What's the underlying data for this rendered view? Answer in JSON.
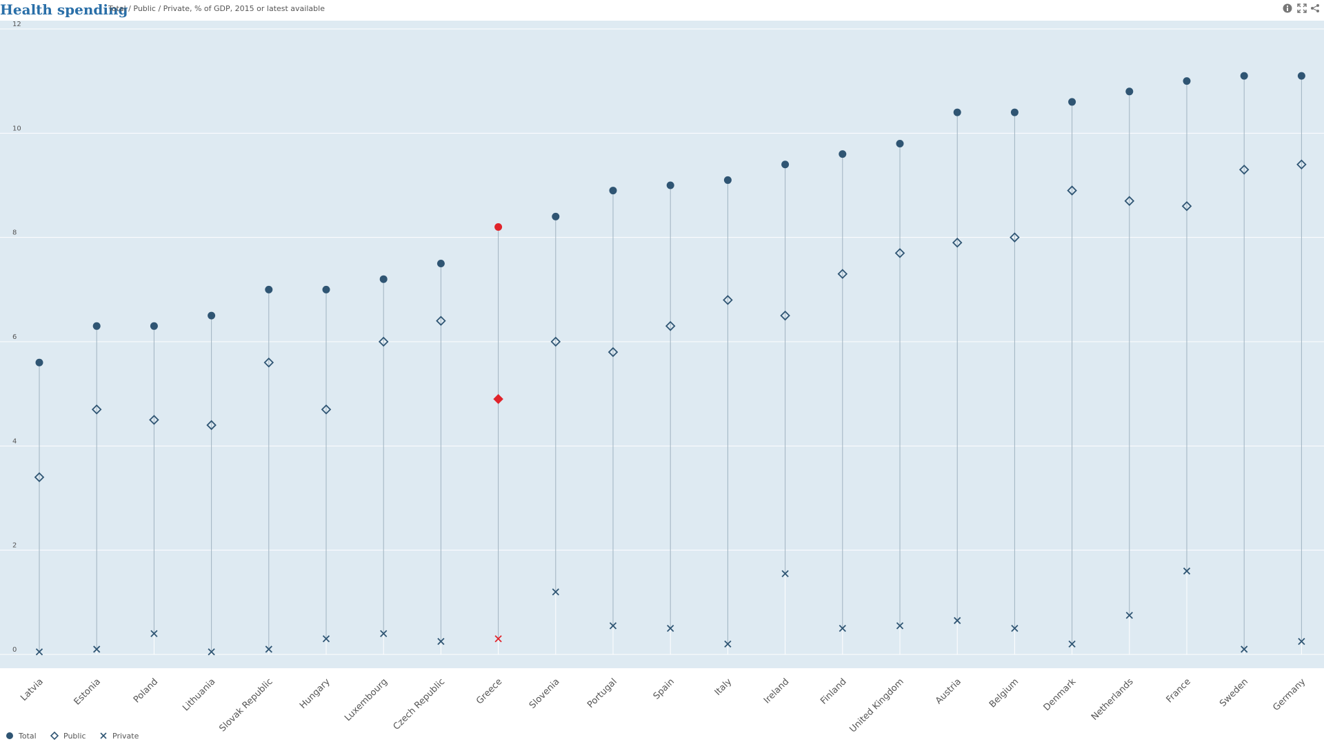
{
  "header": {
    "title": "Health spending",
    "subtitle": "Total / Public / Private, % of GDP, 2015 or latest available"
  },
  "icons": {
    "info": "info-icon",
    "fullscreen": "expand-icon",
    "share": "share-icon"
  },
  "colors": {
    "series": "#2f5573",
    "highlight": "#e0242b",
    "plot_bg": "#deeaf2"
  },
  "chart_data": {
    "type": "scatter",
    "subtype": "dot-range",
    "title": "Health spending",
    "subtitle": "Total / Public / Private, % of GDP, 2015 or latest available",
    "xlabel": "",
    "ylabel": "",
    "ylim": [
      0,
      12
    ],
    "yticks": [
      0,
      2,
      4,
      6,
      8,
      10,
      12
    ],
    "grid": true,
    "legend_position": "bottom-left",
    "highlighted_category": "Greece",
    "categories": [
      "Latvia",
      "Estonia",
      "Poland",
      "Lithuania",
      "Slovak Republic",
      "Hungary",
      "Luxembourg",
      "Czech Republic",
      "Greece",
      "Slovenia",
      "Portugal",
      "Spain",
      "Italy",
      "Ireland",
      "Finland",
      "United Kingdom",
      "Austria",
      "Belgium",
      "Denmark",
      "Netherlands",
      "France",
      "Sweden",
      "Germany"
    ],
    "series": [
      {
        "name": "Total",
        "marker": "circle",
        "values": [
          5.6,
          6.3,
          6.3,
          6.5,
          7.0,
          7.0,
          7.2,
          7.5,
          8.2,
          8.4,
          8.9,
          9.0,
          9.1,
          9.4,
          9.6,
          9.8,
          10.4,
          10.4,
          10.6,
          10.8,
          11.0,
          11.1,
          11.1
        ]
      },
      {
        "name": "Public",
        "marker": "diamond",
        "values": [
          3.4,
          4.7,
          4.5,
          4.4,
          5.6,
          4.7,
          6.0,
          6.4,
          4.9,
          6.0,
          5.8,
          6.3,
          6.8,
          6.5,
          7.3,
          7.7,
          7.9,
          8.0,
          8.9,
          8.7,
          8.6,
          9.3,
          9.4
        ]
      },
      {
        "name": "Private",
        "marker": "cross",
        "values": [
          0.05,
          0.1,
          0.4,
          0.05,
          0.1,
          0.3,
          0.4,
          0.25,
          0.3,
          1.2,
          0.55,
          0.5,
          0.2,
          1.55,
          0.5,
          0.55,
          0.65,
          0.5,
          0.2,
          0.75,
          1.6,
          0.1,
          0.25
        ]
      }
    ]
  }
}
